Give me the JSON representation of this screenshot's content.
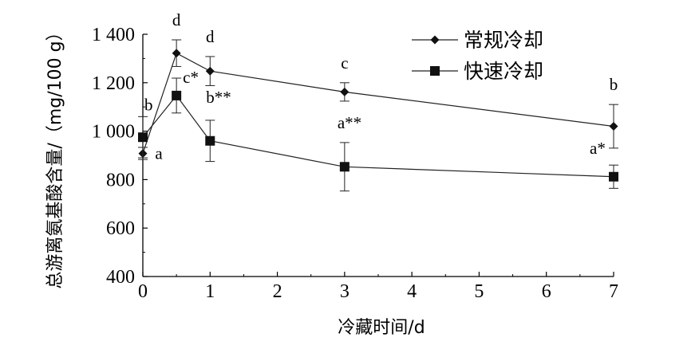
{
  "chart_data": {
    "type": "line",
    "xlabel": "冷藏时间/d",
    "ylabel": "总游离氨基酸含量/（mg/100 g）",
    "xlim": [
      0,
      7
    ],
    "ylim": [
      400,
      1400
    ],
    "x_ticks": [
      "0",
      "1",
      "2",
      "3",
      "4",
      "5",
      "6",
      "7"
    ],
    "y_ticks": [
      "400",
      "600",
      "800",
      "1 000",
      "1 200",
      "1 400"
    ],
    "grid": false,
    "legend": "top-right",
    "series": [
      {
        "name": "常规冷却",
        "marker": "diamond",
        "x": [
          0,
          0.5,
          1,
          3,
          7
        ],
        "y": [
          908,
          1322,
          1248,
          1162,
          1020
        ],
        "error": [
          25,
          55,
          60,
          38,
          90
        ],
        "labels": [
          "a",
          "d",
          "d",
          "c",
          "b"
        ]
      },
      {
        "name": "快速冷却",
        "marker": "square",
        "x": [
          0,
          0.5,
          1,
          3,
          7
        ],
        "y": [
          975,
          1147,
          960,
          853,
          812
        ],
        "error": [
          85,
          72,
          85,
          100,
          48
        ],
        "labels": [
          "b",
          "c*",
          "b**",
          "a**",
          "a*"
        ]
      }
    ]
  }
}
